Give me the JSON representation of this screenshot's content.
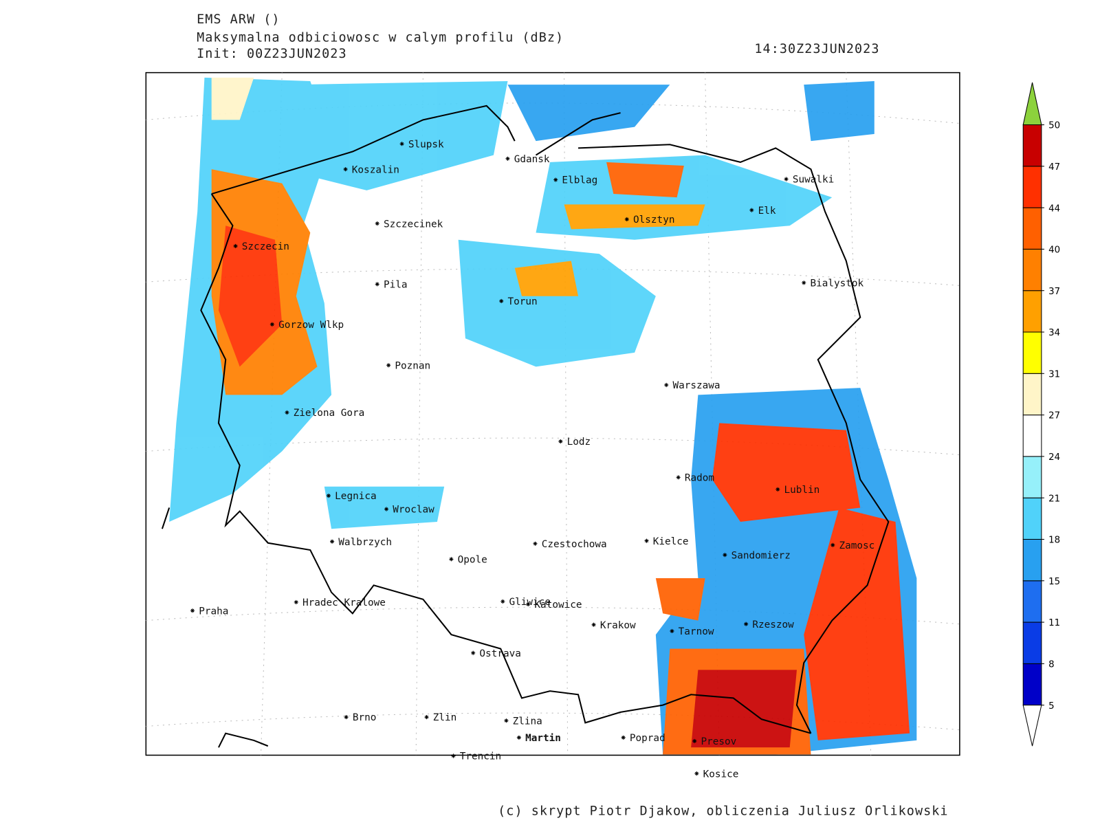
{
  "header": {
    "model": "EMS ARW ()",
    "title": "Maksymalna odbiciowosc w calym profilu (dBz)",
    "init": "Init: 00Z23JUN2023",
    "valid": "14:30Z23JUN2023"
  },
  "map": {
    "cities": [
      "Slupsk",
      "Koszalin",
      "Gdansk",
      "Elblag",
      "Suwalki",
      "Elk",
      "Szczecinek",
      "Olsztyn",
      "Szczecin",
      "Bialystok",
      "Pila",
      "Torun",
      "Gorzow Wlkp",
      "Poznan",
      "Warszawa",
      "Zielona Gora",
      "Lodz",
      "Radom",
      "Lublin",
      "Legnica",
      "Wroclaw",
      "Walbrzych",
      "Czestochowa",
      "Kielce",
      "Zamosc",
      "Sandomierz",
      "Opole",
      "Praha",
      "Hradec Kralowe",
      "Gliwice",
      "Katowice",
      "Krakow",
      "Rzeszow",
      "Tarnow",
      "Ostrava",
      "Brno",
      "Zlin",
      "Zlina",
      "Martin",
      "Poprad",
      "Presov",
      "Trencin",
      "Kosice"
    ]
  },
  "colorbar": {
    "ticks": [
      5,
      8,
      11,
      15,
      18,
      21,
      24,
      27,
      31,
      34,
      37,
      40,
      44,
      47,
      50
    ],
    "colors": [
      "#0000c8",
      "#0a3ce6",
      "#1e6ef0",
      "#28a0f0",
      "#50d2fa",
      "#96f0fa",
      "#ffffff",
      "#fff5c8",
      "#ffff00",
      "#ffa000",
      "#ff8000",
      "#ff6000",
      "#ff3000",
      "#c80000"
    ],
    "over_color": "#8cd23c",
    "under_color": "#ffffff"
  },
  "footer": "(c) skrypt Piotr Djakow, obliczenia Juliusz Orlikowski"
}
